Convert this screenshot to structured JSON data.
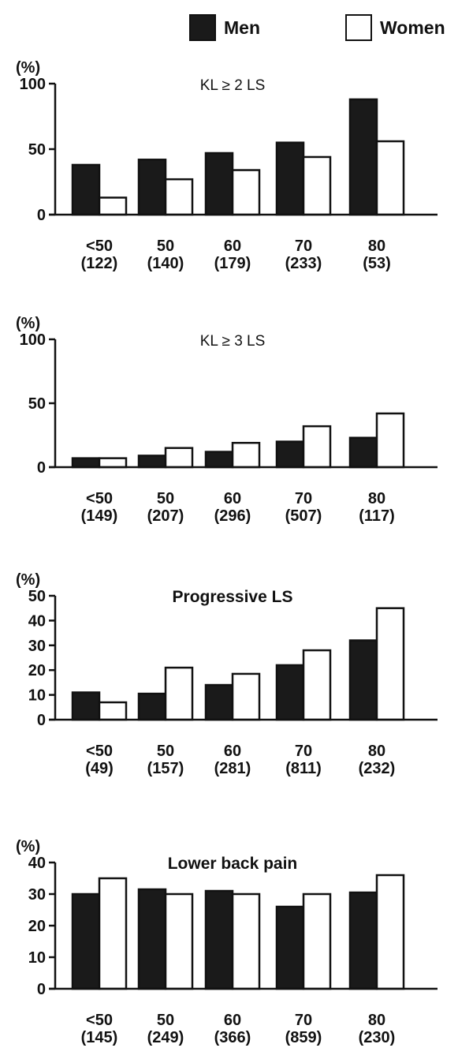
{
  "legend": {
    "men_label": "Men",
    "women_label": "Women"
  },
  "colors": {
    "men": "#1a1a1a",
    "women": "#ffffff",
    "axis": "#111111"
  },
  "chart_data": [
    {
      "type": "bar",
      "title": "KL ≥ 2 LS",
      "ylabel": "(%)",
      "ylim": [
        0,
        100
      ],
      "yticks": [
        0,
        50,
        100
      ],
      "categories": [
        "<50",
        "50",
        "60",
        "70",
        "80"
      ],
      "sample_sizes": [
        "(122)",
        "(140)",
        "(179)",
        "(233)",
        "(53)"
      ],
      "series": [
        {
          "name": "Men",
          "values": [
            38,
            42,
            47,
            55,
            88
          ]
        },
        {
          "name": "Women",
          "values": [
            13,
            27,
            34,
            44,
            56
          ]
        }
      ]
    },
    {
      "type": "bar",
      "title": "KL ≥ 3 LS",
      "ylabel": "(%)",
      "ylim": [
        0,
        100
      ],
      "yticks": [
        0,
        50,
        100
      ],
      "categories": [
        "<50",
        "50",
        "60",
        "70",
        "80"
      ],
      "sample_sizes": [
        "(149)",
        "(207)",
        "(296)",
        "(507)",
        "(117)"
      ],
      "series": [
        {
          "name": "Men",
          "values": [
            7,
            9,
            12,
            20,
            23
          ]
        },
        {
          "name": "Women",
          "values": [
            7,
            15,
            19,
            32,
            42
          ]
        }
      ]
    },
    {
      "type": "bar",
      "title": "Progressive LS",
      "ylabel": "(%)",
      "ylim": [
        0,
        50
      ],
      "yticks": [
        0,
        10,
        20,
        30,
        40,
        50
      ],
      "categories": [
        "<50",
        "50",
        "60",
        "70",
        "80"
      ],
      "sample_sizes": [
        "(49)",
        "(157)",
        "(281)",
        "(811)",
        "(232)"
      ],
      "series": [
        {
          "name": "Men",
          "values": [
            11,
            10.5,
            14,
            22,
            32
          ]
        },
        {
          "name": "Women",
          "values": [
            7,
            21,
            18.5,
            28,
            45
          ]
        }
      ]
    },
    {
      "type": "bar",
      "title": "Lower back pain",
      "ylabel": "(%)",
      "ylim": [
        0,
        40
      ],
      "yticks": [
        0,
        10,
        20,
        30,
        40
      ],
      "categories": [
        "<50",
        "50",
        "60",
        "70",
        "80"
      ],
      "sample_sizes": [
        "(145)",
        "(249)",
        "(366)",
        "(859)",
        "(230)"
      ],
      "series": [
        {
          "name": "Men",
          "values": [
            30,
            31.5,
            31,
            26,
            30.5
          ]
        },
        {
          "name": "Women",
          "values": [
            35,
            30,
            30,
            30,
            36
          ]
        }
      ]
    }
  ]
}
